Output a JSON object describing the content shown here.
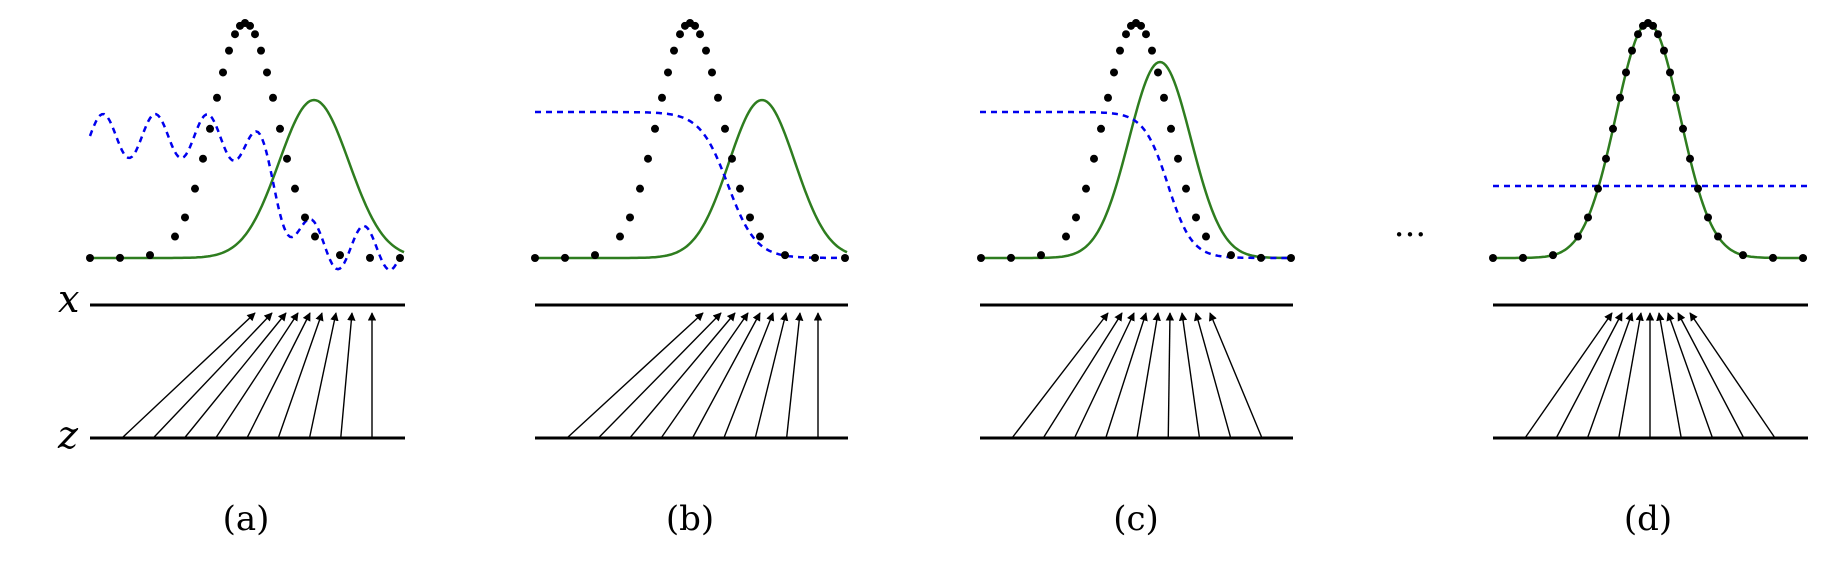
{
  "figure": {
    "axis_labels": {
      "x": "x",
      "z": "z"
    },
    "ellipsis": "···",
    "colors": {
      "generator": "#2e7d1f",
      "discriminator": "#0000ee",
      "data": "#000000",
      "axes": "#000000"
    },
    "panels": [
      {
        "id": "a",
        "caption": "(a)",
        "discriminator": "oscillating",
        "generator_shift": "right",
        "arrows": 9
      },
      {
        "id": "b",
        "caption": "(b)",
        "discriminator": "sigmoid",
        "generator_shift": "right",
        "arrows": 9
      },
      {
        "id": "c",
        "caption": "(c)",
        "discriminator": "sigmoid",
        "generator_shift": "near",
        "arrows": 9
      },
      {
        "id": "d",
        "caption": "(d)",
        "discriminator": "flat",
        "generator_shift": "matched",
        "arrows": 9
      }
    ]
  }
}
